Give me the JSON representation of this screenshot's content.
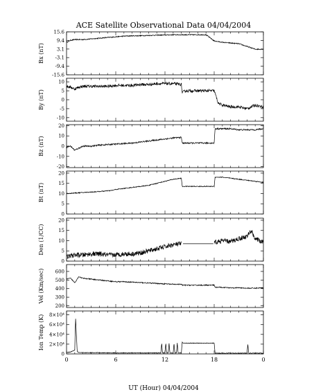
{
  "title": "ACE Satellite Observational Data  04/04/2004",
  "xlabel": "UT (Hour)  04/04/2004",
  "x_ticks": [
    "0",
    "6",
    "12",
    "18",
    "0"
  ],
  "chart_data": [
    {
      "type": "line",
      "ylabel": "Bx (nT)",
      "ylim": [
        -15.6,
        15.6
      ],
      "y_ticks": [
        {
          "v": 15.6,
          "t": "15.6"
        },
        {
          "v": 9.4,
          "t": "9.4"
        },
        {
          "v": 3.1,
          "t": "3.1"
        },
        {
          "v": -3.1,
          "t": "-3.1"
        },
        {
          "v": -9.4,
          "t": "-9.4"
        },
        {
          "v": -15.6,
          "t": "-15.6"
        }
      ],
      "noise": 0.35,
      "gaps": [],
      "segments": [
        {
          "x": [
            0,
            0.5,
            1,
            2,
            3,
            4,
            5,
            6,
            7,
            8,
            9,
            10,
            11,
            12,
            13,
            14,
            15,
            16,
            17,
            18,
            19,
            20,
            21,
            22,
            23,
            24
          ],
          "y": [
            8,
            9.5,
            10,
            10,
            10.5,
            11,
            11.5,
            12,
            12.5,
            12.7,
            12.8,
            13,
            13.2,
            13.3,
            13.5,
            13.5,
            13.5,
            13.5,
            13.5,
            9,
            8,
            7.5,
            7,
            5,
            3,
            3
          ]
        }
      ]
    },
    {
      "type": "line",
      "ylabel": "By (nT)",
      "ylim": [
        -12,
        12
      ],
      "y_ticks": [
        {
          "v": 10,
          "t": "10"
        },
        {
          "v": 5,
          "t": "5"
        },
        {
          "v": 0,
          "t": "0"
        },
        {
          "v": -5,
          "t": "-5"
        },
        {
          "v": -10,
          "t": "-10"
        }
      ],
      "noise": 0.8,
      "gaps": [],
      "segments": [
        {
          "x": [
            0,
            0.5,
            1,
            1.5,
            2,
            3,
            4,
            5,
            6,
            7,
            8,
            9,
            10,
            11,
            12,
            13,
            14,
            14.1,
            14.5,
            15,
            16,
            17,
            18,
            18.5,
            19,
            20,
            21,
            22,
            23,
            24
          ],
          "y": [
            7.5,
            7,
            6,
            7,
            7.5,
            7.5,
            7.5,
            7.5,
            8,
            8,
            8,
            8.5,
            8.5,
            9,
            9,
            9,
            8.5,
            4,
            5,
            5,
            5,
            5,
            5,
            -2,
            -3,
            -4,
            -4,
            -5,
            -3,
            -4
          ]
        }
      ]
    },
    {
      "type": "line",
      "ylabel": "Bz (nT)",
      "ylim": [
        -21,
        21
      ],
      "y_ticks": [
        {
          "v": 20,
          "t": "20"
        },
        {
          "v": 10,
          "t": "10"
        },
        {
          "v": 0,
          "t": "0"
        },
        {
          "v": -10,
          "t": "-10"
        },
        {
          "v": -20,
          "t": "-20"
        }
      ],
      "noise": 0.7,
      "gaps": [],
      "segments": [
        {
          "x": [
            0,
            0.5,
            1,
            1.5,
            2,
            3,
            4,
            5,
            6,
            7,
            8,
            9,
            10,
            11,
            12,
            13,
            14,
            14.1,
            15,
            16,
            17,
            18,
            18.1,
            19,
            20,
            21,
            22,
            23,
            24
          ],
          "y": [
            -1,
            0,
            -4,
            -2,
            0,
            0,
            1,
            1.5,
            2,
            2.5,
            3,
            4,
            5,
            6,
            7,
            8,
            8.5,
            3,
            3,
            3,
            3,
            3,
            17,
            17,
            17,
            16,
            16,
            16,
            17
          ]
        }
      ]
    },
    {
      "type": "line",
      "ylabel": "Bt (nT)",
      "ylim": [
        0,
        21
      ],
      "y_ticks": [
        {
          "v": 20,
          "t": "20"
        },
        {
          "v": 15,
          "t": "15"
        },
        {
          "v": 10,
          "t": "10"
        },
        {
          "v": 5,
          "t": "5"
        },
        {
          "v": 0,
          "t": "0"
        }
      ],
      "noise": 0.2,
      "gaps": [],
      "segments": [
        {
          "x": [
            0,
            2,
            4,
            5.5,
            6,
            8,
            10,
            11,
            12,
            13,
            14,
            14.1,
            15,
            16,
            17,
            18,
            18.1,
            19,
            20,
            21,
            22,
            23,
            24
          ],
          "y": [
            10,
            10.5,
            11,
            11.5,
            12,
            13,
            14,
            15,
            16,
            17,
            17.5,
            13.5,
            13.5,
            13.5,
            13.5,
            13.5,
            18,
            18,
            17.5,
            17,
            16.5,
            16,
            15.5
          ]
        }
      ]
    },
    {
      "type": "line",
      "ylabel": "Den (1/CC)",
      "ylim": [
        0,
        21
      ],
      "y_ticks": [
        {
          "v": 20,
          "t": "20"
        },
        {
          "v": 15,
          "t": "15"
        },
        {
          "v": 10,
          "t": "10"
        },
        {
          "v": 5,
          "t": "5"
        },
        {
          "v": 0,
          "t": "0"
        }
      ],
      "noise": 1.2,
      "gaps": [
        {
          "x0": 14.2,
          "x1": 17.9,
          "y": 8.5
        }
      ],
      "segments": [
        {
          "x": [
            0,
            1,
            2,
            3,
            4,
            5,
            6,
            7,
            8,
            9,
            10,
            11,
            12,
            13,
            14
          ],
          "y": [
            2,
            3,
            3,
            3.5,
            3.5,
            3,
            3,
            3.5,
            3.5,
            4,
            5,
            6,
            7,
            8,
            8.5
          ]
        },
        {
          "x": [
            18,
            19,
            20,
            21,
            22,
            22.5,
            23,
            24
          ],
          "y": [
            9,
            10,
            9.5,
            11,
            12,
            15,
            11,
            9
          ]
        }
      ]
    },
    {
      "type": "line",
      "ylabel": "Vel (Km/sec)",
      "ylim": [
        180,
        680
      ],
      "y_ticks": [
        {
          "v": 600,
          "t": "600"
        },
        {
          "v": 500,
          "t": "500"
        },
        {
          "v": 400,
          "t": "400"
        },
        {
          "v": 300,
          "t": "300"
        },
        {
          "v": 200,
          "t": "200"
        }
      ],
      "noise": 6,
      "gaps": [],
      "segments": [
        {
          "x": [
            0,
            0.5,
            1,
            1.5,
            2,
            3,
            4,
            5,
            6,
            7,
            8,
            9,
            10,
            11,
            12,
            13,
            14,
            14.1,
            15,
            16,
            17,
            18,
            18.1,
            19,
            20,
            21,
            22,
            23,
            24
          ],
          "y": [
            510,
            520,
            470,
            540,
            520,
            510,
            500,
            490,
            480,
            480,
            475,
            470,
            465,
            460,
            455,
            450,
            450,
            440,
            440,
            440,
            440,
            440,
            415,
            415,
            410,
            410,
            405,
            405,
            410
          ]
        }
      ]
    },
    {
      "type": "line",
      "ylabel": "Ion Temp (K)",
      "ylim": [
        0,
        88000
      ],
      "y_ticks": [
        {
          "v": 80000,
          "t": "8×10⁴"
        },
        {
          "v": 60000,
          "t": "6×10⁴"
        },
        {
          "v": 40000,
          "t": "4×10⁴"
        },
        {
          "v": 20000,
          "t": "2×10⁴"
        },
        {
          "v": 0,
          "t": "0"
        }
      ],
      "noise": 600,
      "gaps": [],
      "segments": [
        {
          "x": [
            0,
            0.5,
            1,
            1.1,
            1.3,
            1.5,
            2,
            4,
            6,
            8,
            10,
            11.5,
            11.6,
            11.7,
            12,
            12.1,
            12.2,
            12.4,
            12.5,
            12.6,
            13,
            13.1,
            13.2,
            13.4,
            13.5,
            13.6,
            14,
            14.1,
            14.2,
            15,
            16,
            17,
            18,
            18.1,
            19,
            20,
            22,
            22.1,
            22.2,
            24
          ],
          "y": [
            3000,
            4000,
            8000,
            75000,
            5000,
            3000,
            2500,
            2500,
            2000,
            2000,
            2000,
            2000,
            22000,
            2000,
            2000,
            22000,
            2000,
            2000,
            22000,
            2000,
            2000,
            22000,
            2000,
            2000,
            22000,
            2000,
            2000,
            25000,
            22000,
            22000,
            22000,
            22000,
            22000,
            1500,
            1500,
            1500,
            1500,
            20000,
            1500,
            1500
          ]
        }
      ]
    }
  ]
}
